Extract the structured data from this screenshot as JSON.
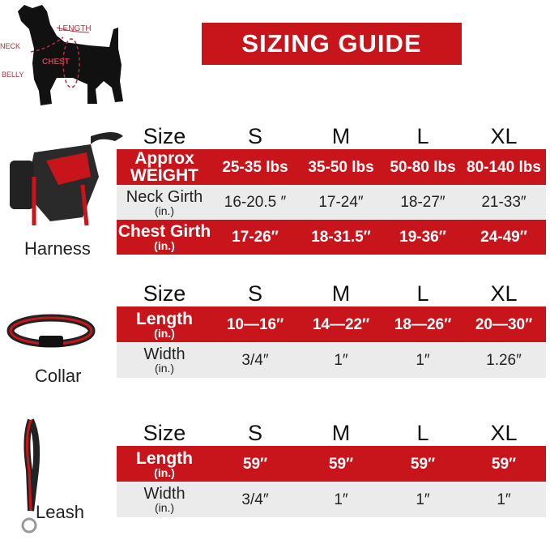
{
  "title": "SIZING GUIDE",
  "colors": {
    "accent": "#c8141b",
    "row_grey": "#ebebeb"
  },
  "dog_diagram": {
    "labels": [
      "LENGTH",
      "NECK",
      "CHEST",
      "BELLY"
    ]
  },
  "sizes": [
    "S",
    "M",
    "L",
    "XL"
  ],
  "size_header": "Size",
  "harness": {
    "label": "Harness",
    "rows": [
      {
        "label": "Approx",
        "label2": "WEIGHT",
        "style": "red",
        "values": [
          "25-35 lbs",
          "35-50 lbs",
          "50-80 lbs",
          "80-140 lbs"
        ]
      },
      {
        "label": "Neck Girth",
        "label2": "(in.)",
        "style": "grey",
        "values": [
          "16-20.5 ″",
          "17-24″",
          "18-27″",
          "21-33″"
        ]
      },
      {
        "label": "Chest Girth",
        "label2": "(in.)",
        "style": "red",
        "values": [
          "17-26″",
          "18-31.5″",
          "19-36″",
          "24-49″"
        ]
      }
    ]
  },
  "collar": {
    "label": "Collar",
    "rows": [
      {
        "label": "Length",
        "label2": "(in.)",
        "style": "red",
        "values": [
          "10—16″",
          "14—22″",
          "18—26″",
          "20—30″"
        ]
      },
      {
        "label": "Width",
        "label2": "(in.)",
        "style": "grey",
        "values": [
          "3/4″",
          "1″",
          "1″",
          "1.26″"
        ]
      }
    ]
  },
  "leash": {
    "label": "Leash",
    "rows": [
      {
        "label": "Length",
        "label2": "(in.)",
        "style": "red",
        "values": [
          "59″",
          "59″",
          "59″",
          "59″"
        ]
      },
      {
        "label": "Width",
        "label2": "(in.)",
        "style": "grey",
        "values": [
          "3/4″",
          "1″",
          "1″",
          "1″"
        ]
      }
    ]
  }
}
